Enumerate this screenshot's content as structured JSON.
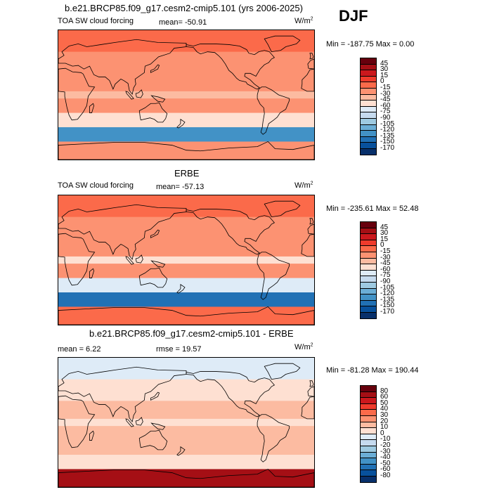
{
  "season": "DJF",
  "colors": {
    "scale": [
      "#67000d",
      "#a50f15",
      "#cb181d",
      "#ef3b2c",
      "#fb6a4a",
      "#fc9272",
      "#fcbba1",
      "#fee0d2",
      "#deebf7",
      "#c6dbef",
      "#9ecae1",
      "#6baed6",
      "#4292c6",
      "#2171b5",
      "#08519c",
      "#08306b",
      "#041e5a"
    ],
    "land_outline": "#000000"
  },
  "panels": [
    {
      "title": "b.e21.BRCP85.f09_g17.cesm2-cmip5.101 (yrs 2006-2025)",
      "variable": "TOA SW cloud forcing",
      "stat_text": "mean= -50.91",
      "units": "W/m",
      "units_sup": "2",
      "minmax": "Min = -187.75 Max =    0.00",
      "colorbar_levels": [
        "45",
        "30",
        "15",
        "0",
        "-15",
        "-30",
        "-45",
        "-60",
        "-75",
        "-90",
        "-105",
        "-120",
        "-135",
        "-150",
        "-170"
      ]
    },
    {
      "title": "ERBE",
      "variable": "TOA SW cloud forcing",
      "stat_text": "mean= -57.13",
      "units": "W/m",
      "units_sup": "2",
      "minmax": "Min = -235.61 Max =  52.48",
      "colorbar_levels": [
        "45",
        "30",
        "15",
        "0",
        "-15",
        "-30",
        "-45",
        "-60",
        "-75",
        "-90",
        "-105",
        "-120",
        "-135",
        "-150",
        "-170"
      ]
    },
    {
      "title": "b.e21.BRCP85.f09_g17.cesm2-cmip5.101 - ERBE",
      "mean_text": "mean =    6.22",
      "rmse_text": "rmse =   19.57",
      "units": "W/m",
      "units_sup": "2",
      "minmax": "Min = -81.28 Max = 190.44",
      "colorbar_levels": [
        "80",
        "60",
        "50",
        "40",
        "30",
        "20",
        "10",
        "0",
        "-10",
        "-20",
        "-30",
        "-40",
        "-50",
        "-60",
        "-80"
      ]
    }
  ],
  "chart_data": [
    {
      "type": "heatmap",
      "title": "b.e21.BRCP85.f09_g17.cesm2-cmip5.101 (yrs 2006-2025)",
      "subtitle": "TOA SW cloud forcing",
      "units": "W/m2",
      "mean": -50.91,
      "min": -187.75,
      "max": 0.0,
      "levels": [
        45,
        30,
        15,
        0,
        -15,
        -30,
        -45,
        -60,
        -75,
        -90,
        -105,
        -120,
        -135,
        -150,
        -170
      ],
      "lat_bands": [
        {
          "lat": [
            60,
            90
          ],
          "value": -15
        },
        {
          "lat": [
            30,
            60
          ],
          "value": -30
        },
        {
          "lat": [
            5,
            30
          ],
          "value": -25
        },
        {
          "lat": [
            -5,
            5
          ],
          "value": -45
        },
        {
          "lat": [
            -25,
            -5
          ],
          "value": -25
        },
        {
          "lat": [
            -45,
            -25
          ],
          "value": -60
        },
        {
          "lat": [
            -65,
            -45
          ],
          "value": -135
        },
        {
          "lat": [
            -90,
            -65
          ],
          "value": -20
        }
      ]
    },
    {
      "type": "heatmap",
      "title": "ERBE",
      "subtitle": "TOA SW cloud forcing",
      "units": "W/m2",
      "mean": -57.13,
      "min": -235.61,
      "max": 52.48,
      "levels": [
        45,
        30,
        15,
        0,
        -15,
        -30,
        -45,
        -60,
        -75,
        -90,
        -105,
        -120,
        -135,
        -150,
        -170
      ],
      "lat_bands": [
        {
          "lat": [
            60,
            90
          ],
          "value": -5
        },
        {
          "lat": [
            30,
            60
          ],
          "value": -30
        },
        {
          "lat": [
            5,
            30
          ],
          "value": -30
        },
        {
          "lat": [
            -5,
            5
          ],
          "value": -55
        },
        {
          "lat": [
            -25,
            -5
          ],
          "value": -30
        },
        {
          "lat": [
            -45,
            -25
          ],
          "value": -75
        },
        {
          "lat": [
            -65,
            -45
          ],
          "value": -150
        },
        {
          "lat": [
            -90,
            -65
          ],
          "value": -15
        }
      ]
    },
    {
      "type": "heatmap",
      "title": "b.e21.BRCP85.f09_g17.cesm2-cmip5.101 - ERBE",
      "units": "W/m2",
      "mean": 6.22,
      "rmse": 19.57,
      "min": -81.28,
      "max": 190.44,
      "levels": [
        80,
        60,
        50,
        40,
        30,
        20,
        10,
        0,
        -10,
        -20,
        -30,
        -40,
        -50,
        -60,
        -80
      ],
      "lat_bands": [
        {
          "lat": [
            60,
            90
          ],
          "value": -5
        },
        {
          "lat": [
            30,
            60
          ],
          "value": 5
        },
        {
          "lat": [
            5,
            30
          ],
          "value": 10
        },
        {
          "lat": [
            -5,
            5
          ],
          "value": 5
        },
        {
          "lat": [
            -25,
            -5
          ],
          "value": 10
        },
        {
          "lat": [
            -45,
            -25
          ],
          "value": 15
        },
        {
          "lat": [
            -65,
            -45
          ],
          "value": 5
        },
        {
          "lat": [
            -90,
            -65
          ],
          "value": 60
        }
      ]
    }
  ]
}
